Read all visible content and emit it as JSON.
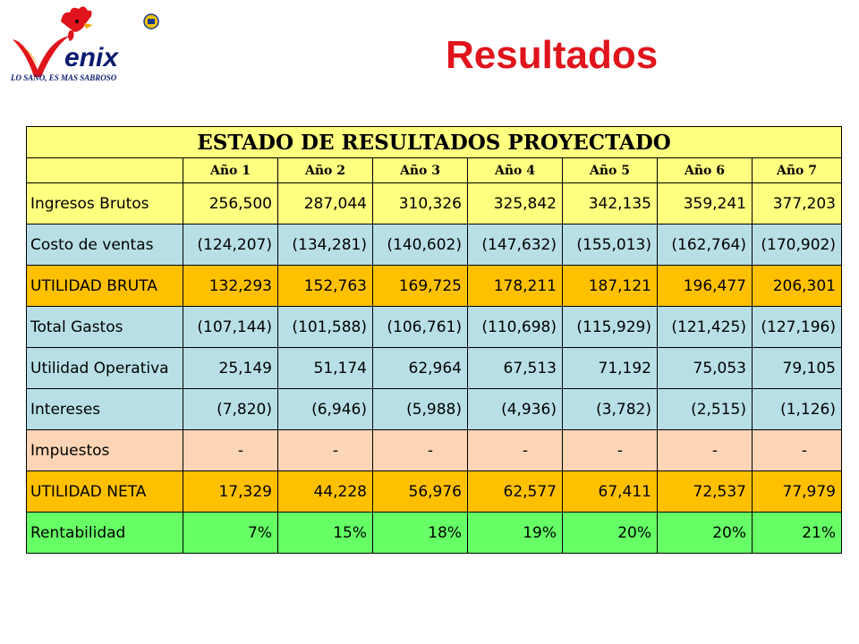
{
  "logo": {
    "wordmark": "enix",
    "tagline": "LO SANO, ES MAS SABROSO"
  },
  "page": {
    "title": "Resultados"
  },
  "table": {
    "title": "ESTADO DE RESULTADOS PROYECTADO",
    "years": [
      "Año 1",
      "Año 2",
      "Año 3",
      "Año 4",
      "Año 5",
      "Año 6",
      "Año 7"
    ],
    "rows": [
      {
        "label": "Ingresos Brutos",
        "values": [
          "256,500",
          "287,044",
          "310,326",
          "325,842",
          "342,135",
          "359,241",
          "377,203"
        ]
      },
      {
        "label": "Costo de ventas",
        "values": [
          "(124,207)",
          "(134,281)",
          "(140,602)",
          "(147,632)",
          "(155,013)",
          "(162,764)",
          "(170,902)"
        ]
      },
      {
        "label": "UTILIDAD BRUTA",
        "values": [
          "132,293",
          "152,763",
          "169,725",
          "178,211",
          "187,121",
          "196,477",
          "206,301"
        ]
      },
      {
        "label": "Total Gastos",
        "values": [
          "(107,144)",
          "(101,588)",
          "(106,761)",
          "(110,698)",
          "(115,929)",
          "(121,425)",
          "(127,196)"
        ]
      },
      {
        "label": "Utilidad Operativa",
        "values": [
          "25,149",
          "51,174",
          "62,964",
          "67,513",
          "71,192",
          "75,053",
          "79,105"
        ]
      },
      {
        "label": "Intereses",
        "values": [
          "(7,820)",
          "(6,946)",
          "(5,988)",
          "(4,936)",
          "(3,782)",
          "(2,515)",
          "(1,126)"
        ]
      },
      {
        "label": "Impuestos",
        "values": [
          "-",
          "-",
          "-",
          "-",
          "-",
          "-",
          "-"
        ]
      },
      {
        "label": "UTILIDAD NETA",
        "values": [
          "17,329",
          "44,228",
          "56,976",
          "62,577",
          "67,411",
          "72,537",
          "77,979"
        ]
      },
      {
        "label": "Rentabilidad",
        "values": [
          "7%",
          "15%",
          "18%",
          "19%",
          "20%",
          "20%",
          "21%"
        ]
      }
    ]
  },
  "colors": {
    "title": "#e0141c",
    "header": "#ffff80",
    "blue": "#b8dfe6",
    "orange": "#ffc000",
    "peach": "#fbd5b5",
    "green": "#66ff66"
  }
}
